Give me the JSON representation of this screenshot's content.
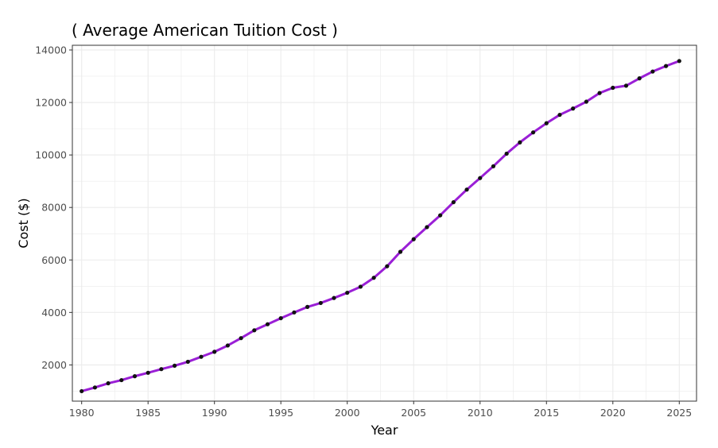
{
  "chart_data": {
    "type": "line",
    "title": "( Average American Tuition Cost )",
    "xlabel": "Year",
    "ylabel": "Cost ($)",
    "xlim": [
      1979.3,
      2026.3
    ],
    "ylim": [
      620,
      14180
    ],
    "x_ticks": [
      1980,
      1985,
      1990,
      1995,
      2000,
      2005,
      2010,
      2015,
      2020,
      2025
    ],
    "y_ticks": [
      2000,
      4000,
      6000,
      8000,
      10000,
      12000,
      14000
    ],
    "grid": true,
    "legend": "none",
    "colors": {
      "line": "#9a1fd6",
      "points": "#111111",
      "grid": "#ebebeb",
      "panel_border": "#333333"
    },
    "series": [
      {
        "x": [
          1980,
          1981,
          1982,
          1983,
          1984,
          1985,
          1986,
          1987,
          1988,
          1989,
          1990,
          1991,
          1992,
          1993,
          1994,
          1995,
          1996,
          1997,
          1998,
          1999,
          2000,
          2001,
          2002,
          2003,
          2004,
          2005,
          2006,
          2007,
          2008,
          2009,
          2010,
          2011,
          2012,
          2013,
          2014,
          2015,
          2016,
          2017,
          2018,
          2019,
          2020,
          2021,
          2022,
          2023,
          2024,
          2025
        ],
        "values": [
          1000,
          1140,
          1300,
          1420,
          1570,
          1700,
          1840,
          1970,
          2120,
          2310,
          2500,
          2740,
          3020,
          3320,
          3550,
          3780,
          4000,
          4210,
          4360,
          4550,
          4750,
          4980,
          5320,
          5760,
          6310,
          6790,
          7250,
          7700,
          8200,
          8680,
          9120,
          9570,
          10050,
          10480,
          10860,
          11210,
          11530,
          11770,
          12030,
          12360,
          12560,
          12640,
          12920,
          13180,
          13390,
          13580
        ]
      }
    ]
  }
}
